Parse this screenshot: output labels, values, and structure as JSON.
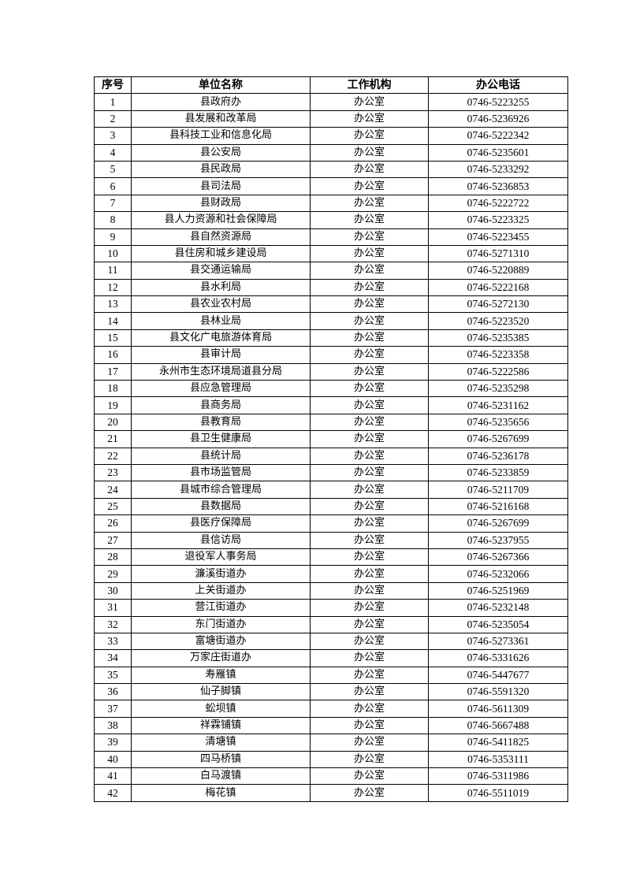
{
  "table": {
    "headers": [
      "序号",
      "单位名称",
      "工作机构",
      "办公电话"
    ],
    "rows": [
      [
        "1",
        "县政府办",
        "办公室",
        "0746-5223255"
      ],
      [
        "2",
        "县发展和改革局",
        "办公室",
        "0746-5236926"
      ],
      [
        "3",
        "县科技工业和信息化局",
        "办公室",
        "0746-5222342"
      ],
      [
        "4",
        "县公安局",
        "办公室",
        "0746-5235601"
      ],
      [
        "5",
        "县民政局",
        "办公室",
        "0746-5233292"
      ],
      [
        "6",
        "县司法局",
        "办公室",
        "0746-5236853"
      ],
      [
        "7",
        "县财政局",
        "办公室",
        "0746-5222722"
      ],
      [
        "8",
        "县人力资源和社会保障局",
        "办公室",
        "0746-5223325"
      ],
      [
        "9",
        "县自然资源局",
        "办公室",
        "0746-5223455"
      ],
      [
        "10",
        "县住房和城乡建设局",
        "办公室",
        "0746-5271310"
      ],
      [
        "11",
        "县交通运输局",
        "办公室",
        "0746-5220889"
      ],
      [
        "12",
        "县水利局",
        "办公室",
        "0746-5222168"
      ],
      [
        "13",
        "县农业农村局",
        "办公室",
        "0746-5272130"
      ],
      [
        "14",
        "县林业局",
        "办公室",
        "0746-5223520"
      ],
      [
        "15",
        "县文化广电旅游体育局",
        "办公室",
        "0746-5235385"
      ],
      [
        "16",
        "县审计局",
        "办公室",
        "0746-5223358"
      ],
      [
        "17",
        "永州市生态环境局道县分局",
        "办公室",
        "0746-5222586"
      ],
      [
        "18",
        "县应急管理局",
        "办公室",
        "0746-5235298"
      ],
      [
        "19",
        "县商务局",
        "办公室",
        "0746-5231162"
      ],
      [
        "20",
        "县教育局",
        "办公室",
        "0746-5235656"
      ],
      [
        "21",
        "县卫生健康局",
        "办公室",
        "0746-5267699"
      ],
      [
        "22",
        "县统计局",
        "办公室",
        "0746-5236178"
      ],
      [
        "23",
        "县市场监管局",
        "办公室",
        "0746-5233859"
      ],
      [
        "24",
        "县城市综合管理局",
        "办公室",
        "0746-5211709"
      ],
      [
        "25",
        "县数据局",
        "办公室",
        "0746-5216168"
      ],
      [
        "26",
        "县医疗保障局",
        "办公室",
        "0746-5267699"
      ],
      [
        "27",
        "县信访局",
        "办公室",
        "0746-5237955"
      ],
      [
        "28",
        "退役军人事务局",
        "办公室",
        "0746-5267366"
      ],
      [
        "29",
        "濂溪街道办",
        "办公室",
        "0746-5232066"
      ],
      [
        "30",
        "上关街道办",
        "办公室",
        "0746-5251969"
      ],
      [
        "31",
        "营江街道办",
        "办公室",
        "0746-5232148"
      ],
      [
        "32",
        "东门街道办",
        "办公室",
        "0746-5235054"
      ],
      [
        "33",
        "富塘街道办",
        "办公室",
        "0746-5273361"
      ],
      [
        "34",
        "万家庄街道办",
        "办公室",
        "0746-5331626"
      ],
      [
        "35",
        "寿雁镇",
        "办公室",
        "0746-5447677"
      ],
      [
        "36",
        "仙子脚镇",
        "办公室",
        "0746-5591320"
      ],
      [
        "37",
        "蚣坝镇",
        "办公室",
        "0746-5611309"
      ],
      [
        "38",
        "祥霖铺镇",
        "办公室",
        "0746-5667488"
      ],
      [
        "39",
        "清塘镇",
        "办公室",
        "0746-5411825"
      ],
      [
        "40",
        "四马桥镇",
        "办公室",
        "0746-5353111"
      ],
      [
        "41",
        "白马渡镇",
        "办公室",
        "0746-5311986"
      ],
      [
        "42",
        "梅花镇",
        "办公室",
        "0746-5511019"
      ]
    ]
  }
}
